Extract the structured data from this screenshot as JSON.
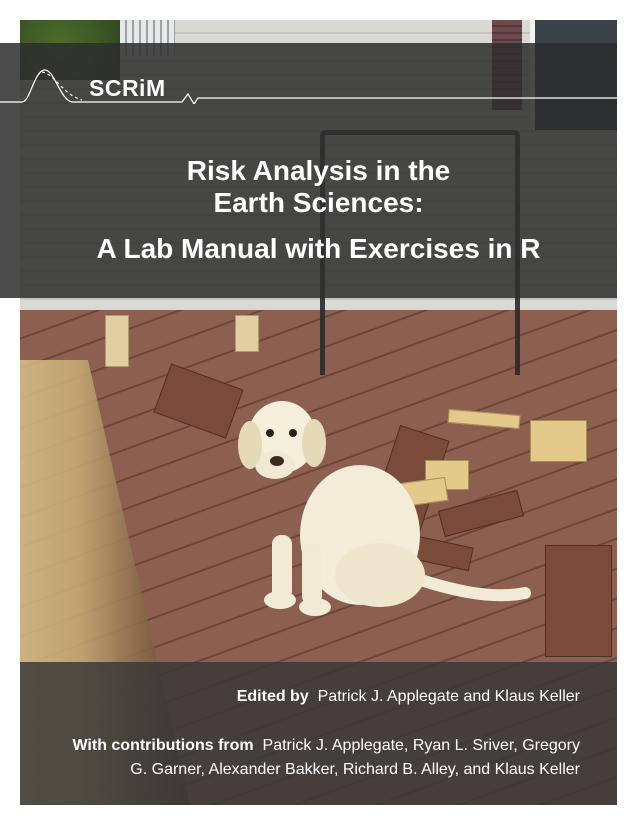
{
  "logo": {
    "text": "SCRiM"
  },
  "title": {
    "line1": "Risk Analysis in the",
    "line2": "Earth Sciences:",
    "line3": "A Lab Manual with Exercises in R"
  },
  "credits": {
    "edited_label": "Edited by",
    "editors": "Patrick J. Applegate and Klaus Keller",
    "contrib_label": "With contributions from",
    "contrib_line1": "Patrick J. Applegate, Ryan L. Sriver, Gregory",
    "contrib_line2": "G. Garner, Alexander Bakker, Richard B. Alley, and Klaus Keller"
  },
  "colors": {
    "band": "#2d2d2d",
    "text": "#ffffff",
    "deck": "#8c5f50"
  }
}
